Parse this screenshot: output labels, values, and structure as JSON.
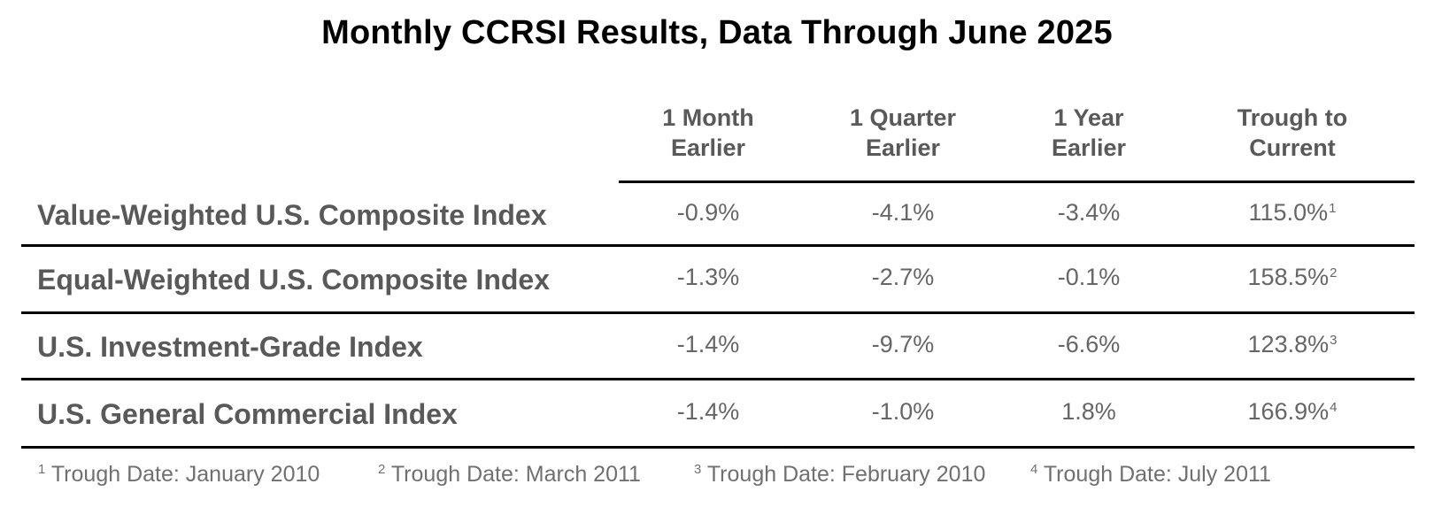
{
  "chart_data": {
    "type": "table",
    "title": "Monthly CCRSI Results, Data Through June 2025",
    "columns": [
      [
        "1 Month",
        "Earlier"
      ],
      [
        "1 Quarter",
        "Earlier"
      ],
      [
        "1 Year",
        "Earlier"
      ],
      [
        "Trough to",
        "Current"
      ]
    ],
    "rows": [
      {
        "label": "Value-Weighted U.S. Composite Index",
        "values": [
          "-0.9%",
          "-4.1%",
          "-3.4%",
          "115.0%"
        ],
        "note": "1"
      },
      {
        "label": "Equal-Weighted U.S. Composite Index",
        "values": [
          "-1.3%",
          "-2.7%",
          "-0.1%",
          "158.5%"
        ],
        "note": "2"
      },
      {
        "label": "U.S. Investment-Grade Index",
        "values": [
          "-1.4%",
          "-9.7%",
          "-6.6%",
          "123.8%"
        ],
        "note": "3"
      },
      {
        "label": "U.S. General Commercial Index",
        "values": [
          "-1.4%",
          "-1.0%",
          "1.8%",
          "166.9%"
        ],
        "note": "4"
      }
    ],
    "footnotes": [
      {
        "mark": "1",
        "text": "Trough Date: January 2010"
      },
      {
        "mark": "2",
        "text": "Trough Date: March 2011"
      },
      {
        "mark": "3",
        "text": "Trough Date: February 2010"
      },
      {
        "mark": "4",
        "text": "Trough Date: July 2011"
      }
    ],
    "colors": {
      "header_text": "#595959",
      "row_label_text": "#595959",
      "value_text": "#666666",
      "rules": "#000000"
    }
  }
}
